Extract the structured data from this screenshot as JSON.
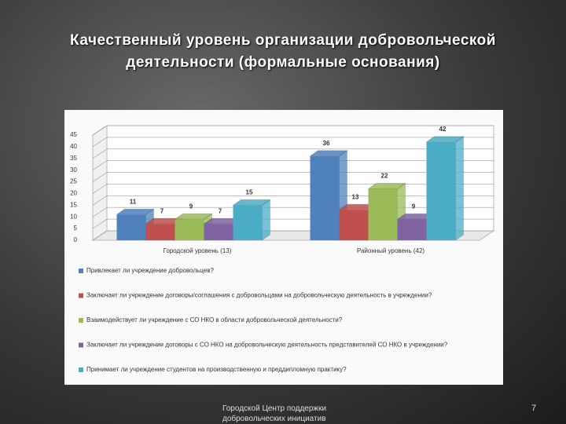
{
  "chart_data": {
    "type": "bar3d",
    "title": "Качественный уровень организации добровольческой деятельности (формальные основания)",
    "categories": [
      "Городской уровень (13)",
      "Районный уровень (42)"
    ],
    "series": [
      {
        "name": "Привлекает ли учреждение добровольцев?",
        "color": "#4f81bd",
        "values": [
          11,
          36
        ]
      },
      {
        "name": "Заключает ли учреждение договоры/соглашения с добровольцами на добровольческую деятельность в учреждении?",
        "color": "#c0504d",
        "values": [
          7,
          13
        ]
      },
      {
        "name": "Взаимодействует ли учреждение с СО НКО в области добровольческой деятельности?",
        "color": "#9bbb59",
        "values": [
          9,
          22
        ]
      },
      {
        "name": "Заключает ли учреждение договоры с СО НКО на добровольческую деятельность представителей СО НКО в учреждении?",
        "color": "#8064a2",
        "values": [
          7,
          9
        ]
      },
      {
        "name": "Принимает ли учреждение студентов на производственную и преддипломную практику?",
        "color": "#4bacc6",
        "values": [
          15,
          42
        ]
      }
    ],
    "ylim": [
      0,
      45
    ],
    "yticks": [
      0,
      5,
      10,
      15,
      20,
      25,
      30,
      35,
      40,
      45
    ],
    "grid": true
  },
  "footer": {
    "text": "Городской Центр поддержки добровольческих инициатив",
    "page": "7"
  }
}
